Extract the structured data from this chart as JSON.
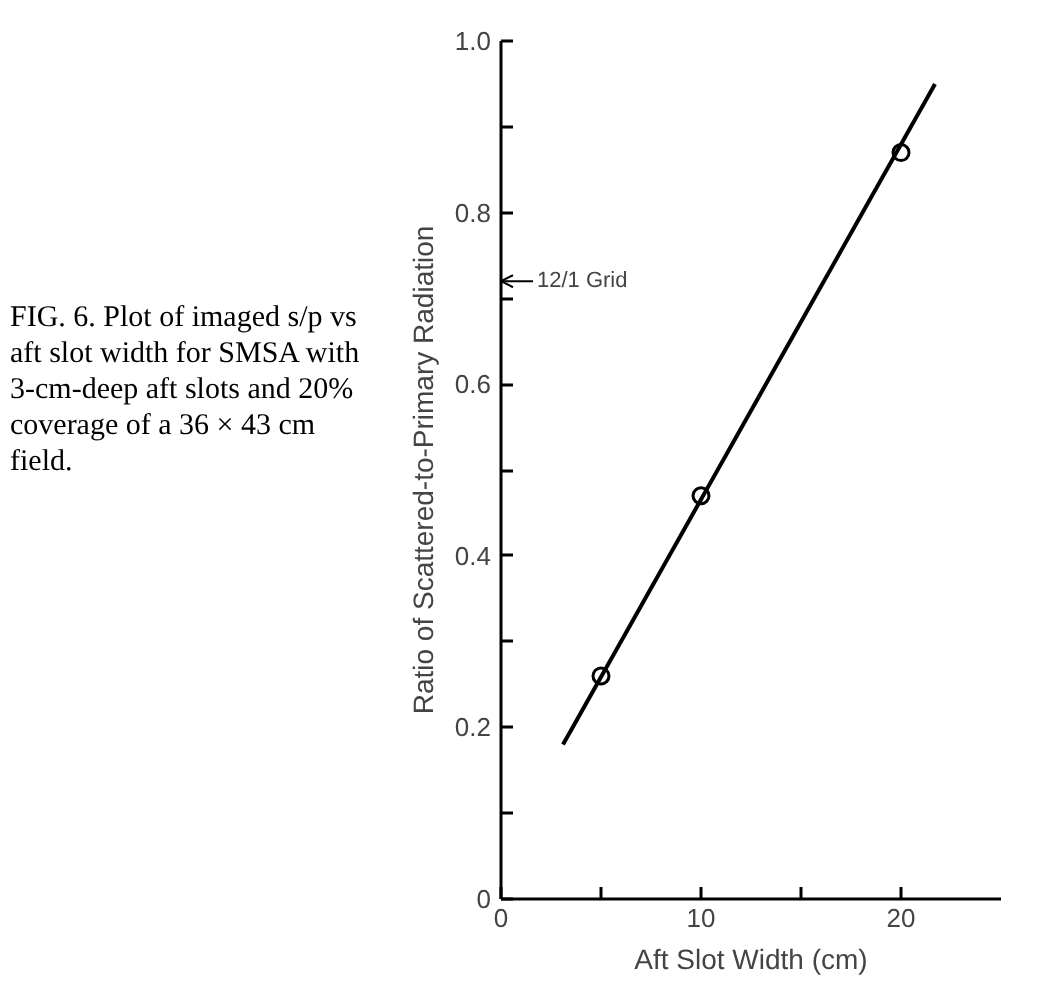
{
  "chart_data": {
    "type": "scatter",
    "xlabel": "Aft Slot Width (cm)",
    "ylabel": "Ratio of Scattered-to-Primary Radiation",
    "xlim": [
      0,
      25
    ],
    "ylim": [
      0,
      1.0
    ],
    "xticks": [
      0,
      {
        "value": 5,
        "label": null
      },
      10,
      {
        "value": 15,
        "label": null
      },
      20
    ],
    "yticks": [
      0,
      {
        "value": 0.1,
        "label": null
      },
      0.2,
      {
        "value": 0.3,
        "label": null
      },
      0.4,
      {
        "value": 0.5,
        "label": null
      },
      0.6,
      {
        "value": 0.7,
        "label": null
      },
      0.8,
      {
        "value": 0.9,
        "label": null
      },
      {
        "value": 1.0,
        "label": "1.0"
      }
    ],
    "grid": false,
    "series": [
      {
        "color": "#000000",
        "marker": "circle",
        "x": [
          5,
          10,
          20
        ],
        "values": [
          0.26,
          0.47,
          0.87
        ]
      },
      {
        "type": "line",
        "color": "#000000",
        "x": [
          3.1,
          21.7
        ],
        "values": [
          0.18,
          0.95
        ]
      }
    ],
    "ref_lines": [
      {
        "axis": "y",
        "value": 0.72,
        "label": "12/1 Grid"
      }
    ],
    "annotations": [
      "FIG. 6. Plot of imaged s/p vs aft slot width for SMSA with 3-cm-deep aft slots and 20% coverage of a 36 × 43 cm field."
    ]
  }
}
